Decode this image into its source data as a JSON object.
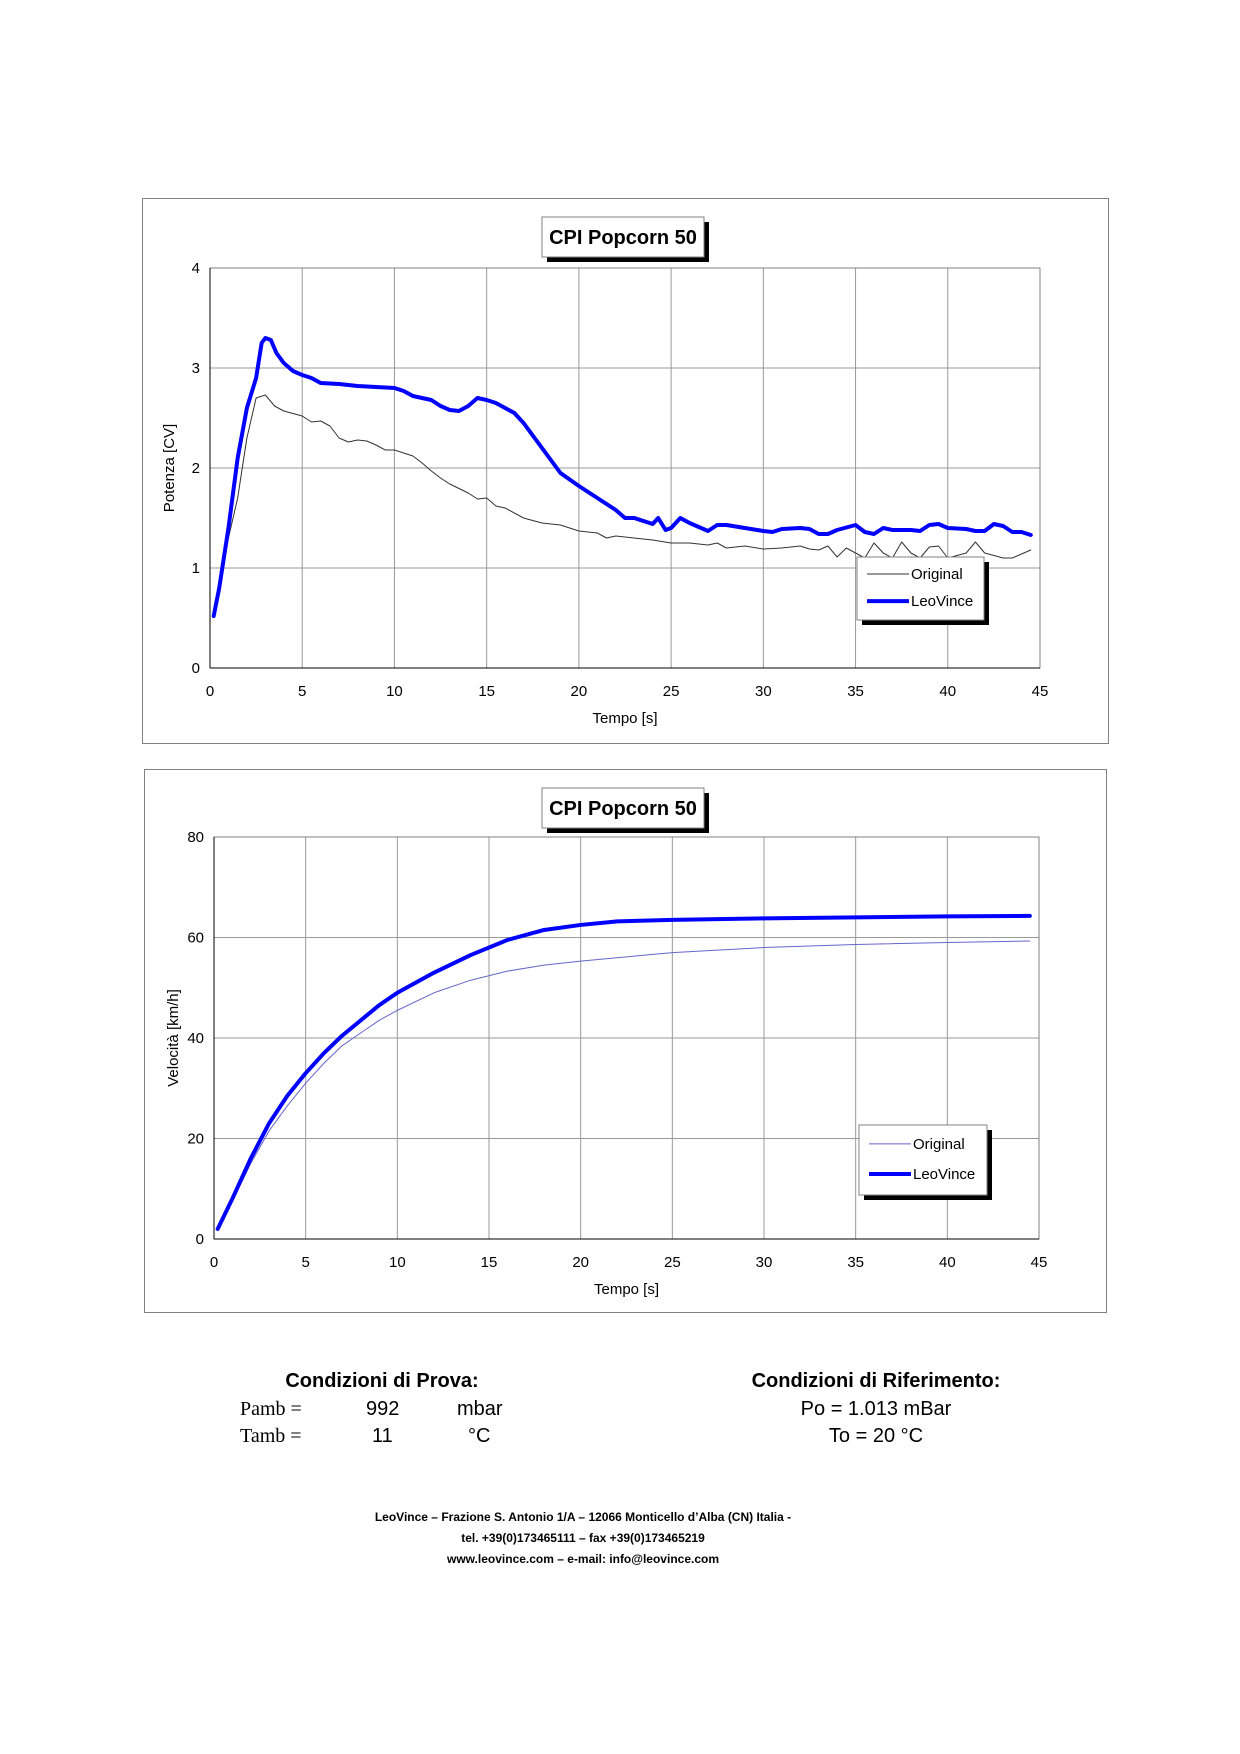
{
  "chart_data": [
    {
      "type": "line",
      "title": "CPI Popcorn 50",
      "xlabel": "Tempo [s]",
      "ylabel": "Potenza [CV]",
      "xlim": [
        0,
        45
      ],
      "ylim": [
        0,
        4
      ],
      "xticks": [
        "0",
        "5",
        "10",
        "15",
        "20",
        "25",
        "30",
        "35",
        "40",
        "45"
      ],
      "yticks": [
        "0",
        "1",
        "2",
        "3",
        "4"
      ],
      "grid": true,
      "legend": "bottom-right",
      "series": [
        {
          "name": "Original",
          "color": "#333333",
          "width": 1,
          "points": [
            [
              0.2,
              0.52
            ],
            [
              1,
              1.3
            ],
            [
              1.5,
              1.7
            ],
            [
              2,
              2.3
            ],
            [
              2.5,
              2.7
            ],
            [
              3,
              2.73
            ],
            [
              3.5,
              2.62
            ],
            [
              4,
              2.57
            ],
            [
              5,
              2.52
            ],
            [
              5.5,
              2.46
            ],
            [
              6,
              2.47
            ],
            [
              6.5,
              2.42
            ],
            [
              7,
              2.3
            ],
            [
              7.5,
              2.26
            ],
            [
              8,
              2.28
            ],
            [
              8.5,
              2.27
            ],
            [
              9,
              2.23
            ],
            [
              9.5,
              2.18
            ],
            [
              10,
              2.18
            ],
            [
              11,
              2.12
            ],
            [
              11.5,
              2.05
            ],
            [
              12,
              1.97
            ],
            [
              12.5,
              1.9
            ],
            [
              13,
              1.84
            ],
            [
              14,
              1.75
            ],
            [
              14.5,
              1.69
            ],
            [
              15,
              1.7
            ],
            [
              15.5,
              1.62
            ],
            [
              16,
              1.6
            ],
            [
              17,
              1.5
            ],
            [
              18,
              1.45
            ],
            [
              19,
              1.43
            ],
            [
              20,
              1.37
            ],
            [
              21,
              1.35
            ],
            [
              21.5,
              1.3
            ],
            [
              22,
              1.32
            ],
            [
              23,
              1.3
            ],
            [
              24,
              1.28
            ],
            [
              25,
              1.25
            ],
            [
              26,
              1.25
            ],
            [
              27,
              1.23
            ],
            [
              27.5,
              1.25
            ],
            [
              28,
              1.2
            ],
            [
              29,
              1.22
            ],
            [
              30,
              1.19
            ],
            [
              31,
              1.2
            ],
            [
              32,
              1.22
            ],
            [
              32.5,
              1.19
            ],
            [
              33,
              1.18
            ],
            [
              33.5,
              1.22
            ],
            [
              34,
              1.11
            ],
            [
              34.5,
              1.2
            ],
            [
              35,
              1.15
            ],
            [
              35.5,
              1.1
            ],
            [
              36,
              1.25
            ],
            [
              36.5,
              1.15
            ],
            [
              37,
              1.1
            ],
            [
              37.5,
              1.26
            ],
            [
              38,
              1.15
            ],
            [
              38.5,
              1.1
            ],
            [
              39,
              1.21
            ],
            [
              39.5,
              1.22
            ],
            [
              40,
              1.1
            ],
            [
              41,
              1.15
            ],
            [
              41.5,
              1.26
            ],
            [
              42,
              1.15
            ],
            [
              43,
              1.1
            ],
            [
              43.5,
              1.1
            ],
            [
              44,
              1.14
            ],
            [
              44.5,
              1.18
            ]
          ]
        },
        {
          "name": "LeoVince",
          "color": "#0000ff",
          "width": 4,
          "points": [
            [
              0.2,
              0.52
            ],
            [
              0.5,
              0.8
            ],
            [
              1,
              1.4
            ],
            [
              1.5,
              2.1
            ],
            [
              2,
              2.6
            ],
            [
              2.5,
              2.9
            ],
            [
              2.8,
              3.25
            ],
            [
              3,
              3.3
            ],
            [
              3.3,
              3.28
            ],
            [
              3.6,
              3.15
            ],
            [
              4,
              3.05
            ],
            [
              4.5,
              2.97
            ],
            [
              5,
              2.93
            ],
            [
              5.5,
              2.9
            ],
            [
              6,
              2.85
            ],
            [
              7,
              2.84
            ],
            [
              8,
              2.82
            ],
            [
              9,
              2.81
            ],
            [
              10,
              2.8
            ],
            [
              10.5,
              2.77
            ],
            [
              11,
              2.72
            ],
            [
              12,
              2.68
            ],
            [
              12.5,
              2.62
            ],
            [
              13,
              2.58
            ],
            [
              13.5,
              2.57
            ],
            [
              14,
              2.62
            ],
            [
              14.5,
              2.7
            ],
            [
              15,
              2.68
            ],
            [
              15.5,
              2.65
            ],
            [
              16,
              2.6
            ],
            [
              16.5,
              2.55
            ],
            [
              17,
              2.45
            ],
            [
              18,
              2.2
            ],
            [
              19,
              1.95
            ],
            [
              20,
              1.82
            ],
            [
              21,
              1.7
            ],
            [
              22,
              1.58
            ],
            [
              22.5,
              1.5
            ],
            [
              23,
              1.5
            ],
            [
              24,
              1.44
            ],
            [
              24.3,
              1.5
            ],
            [
              24.7,
              1.38
            ],
            [
              25,
              1.4
            ],
            [
              25.5,
              1.5
            ],
            [
              26,
              1.45
            ],
            [
              27,
              1.37
            ],
            [
              27.5,
              1.43
            ],
            [
              28,
              1.43
            ],
            [
              29,
              1.4
            ],
            [
              30,
              1.37
            ],
            [
              30.5,
              1.36
            ],
            [
              31,
              1.39
            ],
            [
              32,
              1.4
            ],
            [
              32.5,
              1.39
            ],
            [
              33,
              1.34
            ],
            [
              33.5,
              1.34
            ],
            [
              34,
              1.38
            ],
            [
              35,
              1.43
            ],
            [
              35.5,
              1.36
            ],
            [
              36,
              1.34
            ],
            [
              36.5,
              1.4
            ],
            [
              37,
              1.38
            ],
            [
              38,
              1.38
            ],
            [
              38.5,
              1.37
            ],
            [
              39,
              1.43
            ],
            [
              39.5,
              1.44
            ],
            [
              40,
              1.4
            ],
            [
              41,
              1.39
            ],
            [
              41.5,
              1.37
            ],
            [
              42,
              1.37
            ],
            [
              42.5,
              1.44
            ],
            [
              43,
              1.42
            ],
            [
              43.5,
              1.36
            ],
            [
              44,
              1.36
            ],
            [
              44.5,
              1.33
            ]
          ]
        }
      ]
    },
    {
      "type": "line",
      "title": "CPI Popcorn 50",
      "xlabel": "Tempo [s]",
      "ylabel": "Velocità [km/h]",
      "xlim": [
        0,
        45
      ],
      "ylim": [
        0,
        80
      ],
      "xticks": [
        "0",
        "5",
        "10",
        "15",
        "20",
        "25",
        "30",
        "35",
        "40",
        "45"
      ],
      "yticks": [
        "0",
        "20",
        "40",
        "60",
        "80"
      ],
      "grid": true,
      "legend": "bottom-right",
      "series": [
        {
          "name": "Original",
          "color": "#6666cc",
          "width": 1,
          "points": [
            [
              0.2,
              2
            ],
            [
              1,
              7.5
            ],
            [
              2,
              15
            ],
            [
              3,
              21.5
            ],
            [
              4,
              26.5
            ],
            [
              5,
              31
            ],
            [
              6,
              35
            ],
            [
              7,
              38.5
            ],
            [
              8,
              41
            ],
            [
              9,
              43.5
            ],
            [
              10,
              45.5
            ],
            [
              12,
              49
            ],
            [
              14,
              51.5
            ],
            [
              16,
              53.3
            ],
            [
              18,
              54.5
            ],
            [
              20,
              55.3
            ],
            [
              25,
              57
            ],
            [
              30,
              58
            ],
            [
              35,
              58.6
            ],
            [
              40,
              59
            ],
            [
              44.5,
              59.3
            ]
          ]
        },
        {
          "name": "LeoVince",
          "color": "#0000ff",
          "width": 4,
          "points": [
            [
              0.2,
              2
            ],
            [
              1,
              8
            ],
            [
              2,
              16
            ],
            [
              3,
              23
            ],
            [
              4,
              28.5
            ],
            [
              5,
              33
            ],
            [
              6,
              37
            ],
            [
              7,
              40.5
            ],
            [
              8,
              43.5
            ],
            [
              9,
              46.5
            ],
            [
              10,
              49
            ],
            [
              12,
              53
            ],
            [
              14,
              56.5
            ],
            [
              16,
              59.5
            ],
            [
              18,
              61.5
            ],
            [
              20,
              62.5
            ],
            [
              22,
              63.2
            ],
            [
              25,
              63.5
            ],
            [
              30,
              63.8
            ],
            [
              35,
              64
            ],
            [
              40,
              64.2
            ],
            [
              44.5,
              64.3
            ]
          ]
        }
      ]
    }
  ],
  "conditions": {
    "test": {
      "title": "Condizioni di Prova:",
      "rows": [
        {
          "label": "Pamb =",
          "value": "992",
          "unit": "mbar"
        },
        {
          "label": "Tamb =",
          "value": "11",
          "unit": "°C"
        }
      ]
    },
    "reference": {
      "title": "Condizioni di Riferimento:",
      "lines": [
        "Po = 1.013 mBar",
        "To = 20 °C"
      ]
    }
  },
  "footer": [
    "LeoVince – Frazione S. Antonio 1/A – 12066 Monticello d’Alba (CN) Italia  -",
    "tel. +39(0)173465111 – fax +39(0)173465219",
    "www.leovince.com – e-mail: info@leovince.com"
  ]
}
